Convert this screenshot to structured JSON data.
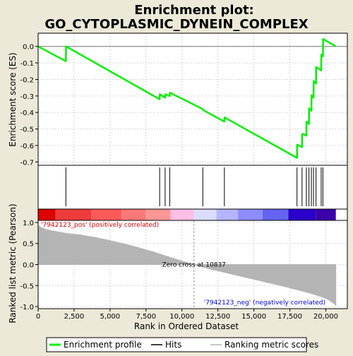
{
  "chart_data": {
    "type": "line",
    "title_line1": "Enrichment plot:",
    "title_line2": "GO_CYTOPLASMIC_DYNEIN_COMPLEX",
    "xlabel": "Rank in Ordered Dataset",
    "top_panel": {
      "ylabel": "Enrichment score (ES)",
      "ylim": [
        -0.72,
        0.08
      ],
      "yticks": [
        0.0,
        -0.1,
        -0.2,
        -0.3,
        -0.4,
        -0.5,
        -0.6,
        -0.7
      ],
      "ytick_labels": [
        "0.0",
        "-0.1",
        "-0.2",
        "-0.3",
        "-0.4",
        "-0.5",
        "-0.6",
        "-0.7"
      ],
      "grid": true,
      "series": [
        {
          "name": "Enrichment profile",
          "color": "#00ee00",
          "x": [
            0,
            1930,
            1940,
            8450,
            8460,
            8830,
            8840,
            9150,
            9160,
            11450,
            11460,
            12950,
            12960,
            18000,
            18010,
            18350,
            18360,
            18650,
            18660,
            18830,
            18840,
            19000,
            19010,
            19150,
            19160,
            19320,
            19330,
            19680,
            19690,
            19800,
            19810,
            20700
          ],
          "y": [
            0.0,
            -0.09,
            0.0,
            -0.32,
            -0.29,
            -0.31,
            -0.29,
            -0.3,
            -0.28,
            -0.38,
            -0.385,
            -0.455,
            -0.43,
            -0.675,
            -0.595,
            -0.61,
            -0.53,
            -0.54,
            -0.455,
            -0.47,
            -0.375,
            -0.39,
            -0.295,
            -0.31,
            -0.21,
            -0.225,
            -0.125,
            -0.145,
            -0.05,
            -0.06,
            0.045,
            0.0
          ]
        }
      ]
    },
    "hits_panel": {
      "hit_positions": [
        1930,
        8450,
        8830,
        9150,
        11450,
        12950,
        18000,
        18350,
        18650,
        18830,
        19000,
        19150,
        19320,
        19680,
        19800
      ]
    },
    "color_bar": {
      "segments": [
        {
          "x0": 0,
          "x1": 1200,
          "color": "#dd0000"
        },
        {
          "x0": 1200,
          "x1": 3700,
          "color": "#ee3c3c"
        },
        {
          "x0": 3700,
          "x1": 5800,
          "color": "#ff5a5a"
        },
        {
          "x0": 5800,
          "x1": 7500,
          "color": "#ff7878"
        },
        {
          "x0": 7500,
          "x1": 9200,
          "color": "#ff9696"
        },
        {
          "x0": 9200,
          "x1": 10800,
          "color": "#ffbee6"
        },
        {
          "x0": 10800,
          "x1": 12400,
          "color": "#dcdcff"
        },
        {
          "x0": 12400,
          "x1": 13900,
          "color": "#b4b4ff"
        },
        {
          "x0": 13900,
          "x1": 15600,
          "color": "#8c8cff"
        },
        {
          "x0": 15600,
          "x1": 17400,
          "color": "#6464f0"
        },
        {
          "x0": 17400,
          "x1": 19300,
          "color": "#2a00c8"
        },
        {
          "x0": 19300,
          "x1": 20700,
          "color": "#3c00aa"
        }
      ]
    },
    "metric_panel": {
      "ylabel": "Ranked list metric (Pearson)",
      "ylim": [
        -1.05,
        1.05
      ],
      "yticks": [
        1.0,
        0.5,
        0.0,
        -0.5,
        -1.0
      ],
      "ytick_labels": [
        "1.0",
        "0.5",
        "0.0",
        "-0.5",
        "-1.0"
      ],
      "fill_color": "#b4b4b4",
      "x": [
        0,
        200,
        600,
        1000,
        1500,
        2000,
        3000,
        4000,
        5000,
        6000,
        7000,
        8000,
        9000,
        10000,
        10837,
        11500,
        12000,
        13000,
        14000,
        15000,
        16000,
        17000,
        18000,
        18800,
        19400,
        19800,
        20100,
        20300,
        20500,
        20700
      ],
      "y": [
        0.93,
        0.88,
        0.83,
        0.8,
        0.77,
        0.74,
        0.7,
        0.64,
        0.57,
        0.49,
        0.4,
        0.3,
        0.19,
        0.08,
        0.0,
        -0.06,
        -0.11,
        -0.19,
        -0.27,
        -0.35,
        -0.43,
        -0.51,
        -0.6,
        -0.67,
        -0.73,
        -0.78,
        -0.82,
        -0.86,
        -0.91,
        -0.97
      ],
      "zero_cross_label": "Zero cross at 10837",
      "zero_cross_x": 10837,
      "pos_label": "'7942123_pos' (positively correlated)",
      "pos_color": "#dd0000",
      "neg_label": "'7942123_neg' (negatively correlated)",
      "neg_color": "#0000cc"
    },
    "xlim": [
      0,
      21500
    ],
    "xticks": [
      0,
      2500,
      5000,
      7500,
      10000,
      12500,
      15000,
      17500,
      20000
    ],
    "xtick_labels": [
      "0",
      "2,500",
      "5,000",
      "7,500",
      "10,000",
      "12,500",
      "15,000",
      "17,500",
      "20,000"
    ],
    "legend": {
      "placement": "bottom",
      "entries": [
        {
          "label": "Enrichment profile",
          "color": "#00ee00",
          "kind": "thick-line"
        },
        {
          "label": "Hits",
          "color": "#000000",
          "kind": "line"
        },
        {
          "label": "Ranking metric scores",
          "color": "#b4b4b4",
          "kind": "line"
        }
      ]
    }
  }
}
